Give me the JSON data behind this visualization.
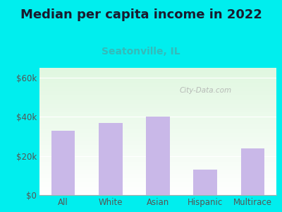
{
  "title": "Median per capita income in 2022",
  "subtitle": "Seatonville, IL",
  "categories": [
    "All",
    "White",
    "Asian",
    "Hispanic",
    "Multirace"
  ],
  "values": [
    33000,
    37000,
    40000,
    13000,
    24000
  ],
  "bar_color": "#c9b8e8",
  "title_color": "#1a1a2e",
  "subtitle_color": "#33bbbb",
  "background_outer": "#00eeee",
  "ylabel_color": "#555555",
  "yticks": [
    0,
    20000,
    40000,
    60000
  ],
  "ytick_labels": [
    "$0",
    "$20k",
    "$40k",
    "$60k"
  ],
  "ylim": [
    0,
    65000
  ],
  "watermark": "City-Data.com",
  "title_fontsize": 13,
  "subtitle_fontsize": 10,
  "tick_fontsize": 8.5
}
